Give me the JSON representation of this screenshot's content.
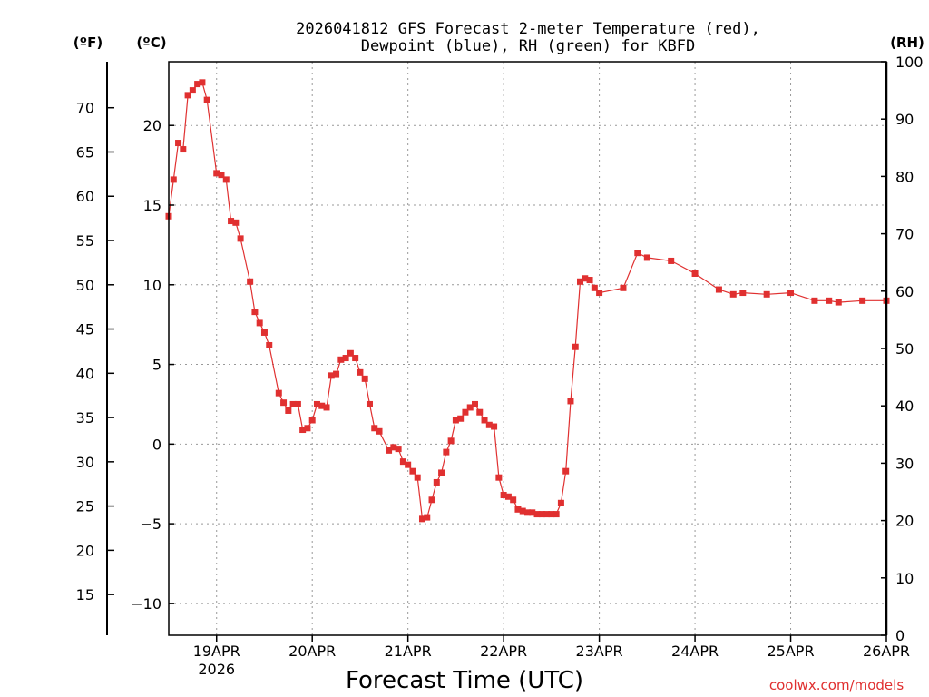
{
  "chart_data": {
    "type": "line",
    "title_line1": "2026041812 GFS Forecast 2-meter Temperature (red),",
    "title_line2": "Dewpoint (blue), RH (green) for KBFD",
    "xlabel": "Forecast Time (UTC)",
    "credit": "coolwx.com/models",
    "unit_f": "(ºF)",
    "unit_c": "(ºC)",
    "unit_rh": "(RH)",
    "x_tick_labels": [
      "19APR",
      "20APR",
      "21APR",
      "22APR",
      "23APR",
      "24APR",
      "25APR",
      "26APR"
    ],
    "x_tick_days": [
      0.5,
      1.5,
      2.5,
      3.5,
      4.5,
      5.5,
      6.5,
      7.5
    ],
    "year_label": "2026",
    "xlim_days": [
      0,
      7.5
    ],
    "ylim_c": [
      -12,
      24
    ],
    "y_ticks_c": [
      -10,
      -5,
      0,
      5,
      10,
      15,
      20
    ],
    "y_ticks_f": [
      15,
      20,
      25,
      30,
      35,
      40,
      45,
      50,
      55,
      60,
      65,
      70
    ],
    "ylim_rh": [
      0,
      100
    ],
    "y_ticks_rh": [
      0,
      10,
      20,
      30,
      40,
      50,
      60,
      70,
      80,
      90,
      100
    ],
    "grid": true,
    "colors": {
      "temperature": "#e03030",
      "dewpoint": "#2233cc",
      "rh": "#22cc22",
      "grid": "#999999",
      "axis": "#000000"
    },
    "series": [
      {
        "name": "Temperature (C)",
        "axis": "c",
        "marker": "filled-square",
        "x": [
          0,
          0.05,
          0.1,
          0.15,
          0.2,
          0.25,
          0.3,
          0.35,
          0.4,
          0.5,
          0.55,
          0.6,
          0.65,
          0.7,
          0.75,
          0.85,
          0.9,
          0.95,
          1.0,
          1.05,
          1.15,
          1.2,
          1.25,
          1.3,
          1.35,
          1.4,
          1.45,
          1.5,
          1.55,
          1.6,
          1.65,
          1.7,
          1.75,
          1.8,
          1.85,
          1.9,
          1.95,
          2.0,
          2.05,
          2.1,
          2.15,
          2.2,
          2.3,
          2.35,
          2.4,
          2.45,
          2.5,
          2.55,
          2.6,
          2.65,
          2.7,
          2.75,
          2.8,
          2.85,
          2.9,
          2.95,
          3.0,
          3.05,
          3.1,
          3.15,
          3.2,
          3.25,
          3.3,
          3.35,
          3.4,
          3.45,
          3.5,
          3.55,
          3.6,
          3.65,
          3.7,
          3.75,
          3.8,
          3.85,
          3.9,
          3.95,
          4.0,
          4.05,
          4.1,
          4.15,
          4.2,
          4.25,
          4.3,
          4.35,
          4.4,
          4.45,
          4.5,
          4.75,
          4.9,
          5.0,
          5.25,
          5.5,
          5.75,
          5.9,
          6.0,
          6.25,
          6.5,
          6.75,
          6.9,
          7.0,
          7.25,
          7.5
        ],
        "values": [
          14.3,
          16.6,
          18.9,
          18.5,
          21.9,
          22.2,
          22.6,
          22.7,
          21.6,
          17.0,
          16.9,
          16.6,
          14.0,
          13.9,
          12.9,
          10.2,
          8.3,
          7.6,
          7.0,
          6.2,
          3.2,
          2.6,
          2.1,
          2.5,
          2.5,
          0.9,
          1.0,
          1.5,
          2.5,
          2.4,
          2.3,
          4.3,
          4.4,
          5.3,
          5.4,
          5.7,
          5.4,
          4.5,
          4.1,
          2.5,
          1.0,
          0.8,
          -0.4,
          -0.2,
          -0.3,
          -1.1,
          -1.3,
          -1.7,
          -2.1,
          -4.7,
          -4.6,
          -3.5,
          -2.4,
          -1.8,
          -0.5,
          0.2,
          1.5,
          1.6,
          2.0,
          2.3,
          2.5,
          2.0,
          1.5,
          1.2,
          1.1,
          -2.1,
          -3.2,
          -3.3,
          -3.5,
          -4.1,
          -4.2,
          -4.3,
          -4.3,
          -4.4,
          -4.4,
          -4.4,
          -4.4,
          -4.4,
          -3.7,
          -1.7,
          2.7,
          6.1,
          10.2,
          10.4,
          10.3,
          9.8,
          9.5,
          9.8,
          12.0,
          11.7,
          11.5,
          10.7,
          9.7,
          9.4,
          9.5,
          9.4,
          9.5,
          9.0,
          9.0,
          8.9,
          9.0,
          9.0
        ]
      }
    ]
  }
}
